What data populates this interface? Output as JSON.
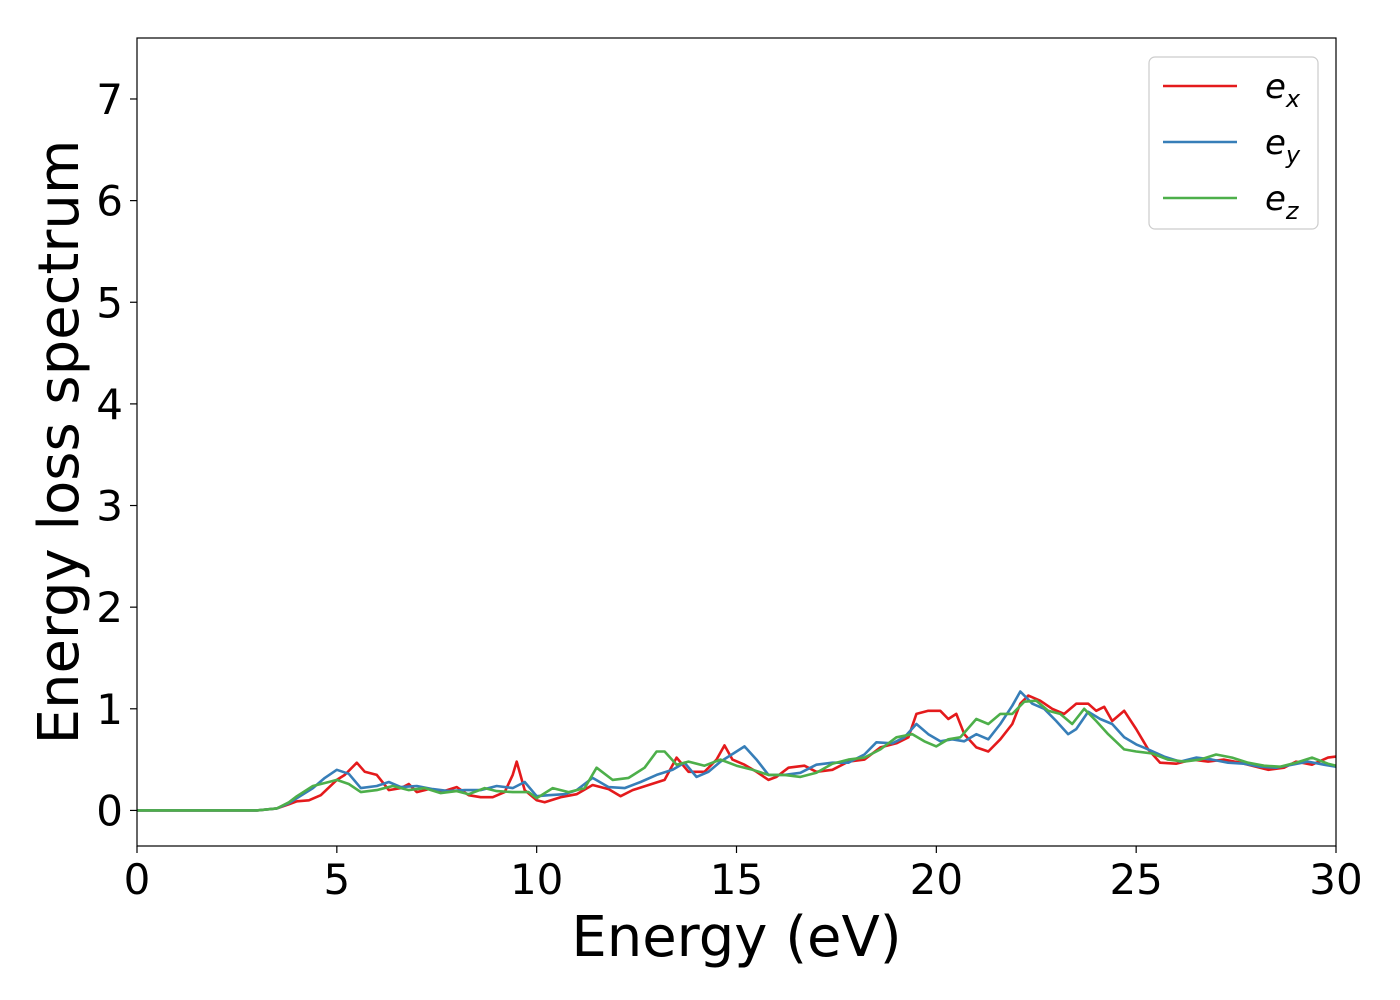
{
  "chart_data": {
    "type": "line",
    "title": "",
    "xlabel": "Energy (eV)",
    "ylabel": "Energy loss spectrum",
    "xlim": [
      0,
      30
    ],
    "ylim": [
      -0.35,
      7.6
    ],
    "xticks": [
      0,
      5,
      10,
      15,
      20,
      25,
      30
    ],
    "yticks": [
      0,
      1,
      2,
      3,
      4,
      5,
      6,
      7
    ],
    "grid": false,
    "legend_position": "top-right",
    "series": [
      {
        "name": "e_x",
        "label_base": "e",
        "label_sub": "x",
        "color": "#e41a1c",
        "points": [
          [
            0,
            0
          ],
          [
            1,
            0
          ],
          [
            2,
            0
          ],
          [
            3,
            0
          ],
          [
            3.5,
            0.02
          ],
          [
            3.8,
            0.06
          ],
          [
            4.0,
            0.09
          ],
          [
            4.3,
            0.1
          ],
          [
            4.6,
            0.15
          ],
          [
            5.0,
            0.3
          ],
          [
            5.2,
            0.35
          ],
          [
            5.5,
            0.47
          ],
          [
            5.7,
            0.38
          ],
          [
            6.0,
            0.35
          ],
          [
            6.3,
            0.2
          ],
          [
            6.6,
            0.22
          ],
          [
            6.8,
            0.26
          ],
          [
            7.0,
            0.18
          ],
          [
            7.3,
            0.21
          ],
          [
            7.6,
            0.18
          ],
          [
            8.0,
            0.23
          ],
          [
            8.3,
            0.15
          ],
          [
            8.6,
            0.13
          ],
          [
            8.9,
            0.13
          ],
          [
            9.2,
            0.18
          ],
          [
            9.4,
            0.35
          ],
          [
            9.5,
            0.48
          ],
          [
            9.7,
            0.2
          ],
          [
            10.0,
            0.1
          ],
          [
            10.2,
            0.08
          ],
          [
            10.6,
            0.13
          ],
          [
            11.0,
            0.16
          ],
          [
            11.4,
            0.25
          ],
          [
            11.8,
            0.21
          ],
          [
            12.1,
            0.14
          ],
          [
            12.4,
            0.2
          ],
          [
            12.8,
            0.25
          ],
          [
            13.2,
            0.3
          ],
          [
            13.5,
            0.52
          ],
          [
            13.8,
            0.38
          ],
          [
            14.2,
            0.38
          ],
          [
            14.5,
            0.5
          ],
          [
            14.7,
            0.64
          ],
          [
            14.9,
            0.5
          ],
          [
            15.2,
            0.45
          ],
          [
            15.5,
            0.38
          ],
          [
            15.8,
            0.3
          ],
          [
            16.0,
            0.33
          ],
          [
            16.3,
            0.42
          ],
          [
            16.7,
            0.44
          ],
          [
            17.0,
            0.38
          ],
          [
            17.4,
            0.4
          ],
          [
            17.8,
            0.48
          ],
          [
            18.2,
            0.5
          ],
          [
            18.6,
            0.62
          ],
          [
            19.0,
            0.66
          ],
          [
            19.3,
            0.72
          ],
          [
            19.5,
            0.95
          ],
          [
            19.8,
            0.98
          ],
          [
            20.1,
            0.98
          ],
          [
            20.3,
            0.9
          ],
          [
            20.5,
            0.95
          ],
          [
            20.7,
            0.75
          ],
          [
            21.0,
            0.62
          ],
          [
            21.3,
            0.58
          ],
          [
            21.6,
            0.7
          ],
          [
            21.9,
            0.85
          ],
          [
            22.1,
            1.05
          ],
          [
            22.3,
            1.13
          ],
          [
            22.6,
            1.08
          ],
          [
            22.9,
            1.0
          ],
          [
            23.2,
            0.95
          ],
          [
            23.5,
            1.05
          ],
          [
            23.8,
            1.05
          ],
          [
            24.0,
            0.98
          ],
          [
            24.2,
            1.02
          ],
          [
            24.4,
            0.88
          ],
          [
            24.7,
            0.98
          ],
          [
            25.0,
            0.8
          ],
          [
            25.3,
            0.6
          ],
          [
            25.6,
            0.47
          ],
          [
            26.0,
            0.46
          ],
          [
            26.4,
            0.5
          ],
          [
            26.8,
            0.48
          ],
          [
            27.2,
            0.5
          ],
          [
            27.6,
            0.47
          ],
          [
            28.0,
            0.43
          ],
          [
            28.3,
            0.4
          ],
          [
            28.7,
            0.42
          ],
          [
            29.0,
            0.48
          ],
          [
            29.4,
            0.45
          ],
          [
            29.8,
            0.52
          ],
          [
            30.0,
            0.53
          ]
        ]
      },
      {
        "name": "e_y",
        "label_base": "e",
        "label_sub": "y",
        "color": "#377eb8",
        "points": [
          [
            0,
            0
          ],
          [
            1,
            0
          ],
          [
            2,
            0
          ],
          [
            3,
            0
          ],
          [
            3.5,
            0.02
          ],
          [
            3.8,
            0.07
          ],
          [
            4.0,
            0.12
          ],
          [
            4.4,
            0.22
          ],
          [
            4.7,
            0.32
          ],
          [
            5.0,
            0.4
          ],
          [
            5.3,
            0.36
          ],
          [
            5.6,
            0.22
          ],
          [
            6.0,
            0.24
          ],
          [
            6.3,
            0.28
          ],
          [
            6.6,
            0.23
          ],
          [
            7.0,
            0.24
          ],
          [
            7.4,
            0.21
          ],
          [
            7.8,
            0.19
          ],
          [
            8.2,
            0.2
          ],
          [
            8.6,
            0.2
          ],
          [
            9.0,
            0.24
          ],
          [
            9.4,
            0.22
          ],
          [
            9.7,
            0.28
          ],
          [
            10.0,
            0.14
          ],
          [
            10.3,
            0.15
          ],
          [
            10.7,
            0.16
          ],
          [
            11.0,
            0.2
          ],
          [
            11.4,
            0.32
          ],
          [
            11.8,
            0.23
          ],
          [
            12.2,
            0.22
          ],
          [
            12.6,
            0.28
          ],
          [
            13.0,
            0.35
          ],
          [
            13.4,
            0.4
          ],
          [
            13.7,
            0.47
          ],
          [
            14.0,
            0.33
          ],
          [
            14.3,
            0.38
          ],
          [
            14.6,
            0.48
          ],
          [
            15.0,
            0.58
          ],
          [
            15.2,
            0.63
          ],
          [
            15.5,
            0.5
          ],
          [
            15.8,
            0.35
          ],
          [
            16.2,
            0.35
          ],
          [
            16.6,
            0.37
          ],
          [
            17.0,
            0.45
          ],
          [
            17.4,
            0.47
          ],
          [
            17.8,
            0.47
          ],
          [
            18.2,
            0.55
          ],
          [
            18.5,
            0.67
          ],
          [
            18.9,
            0.66
          ],
          [
            19.2,
            0.72
          ],
          [
            19.5,
            0.85
          ],
          [
            19.8,
            0.75
          ],
          [
            20.1,
            0.68
          ],
          [
            20.4,
            0.7
          ],
          [
            20.7,
            0.68
          ],
          [
            21.0,
            0.75
          ],
          [
            21.3,
            0.7
          ],
          [
            21.6,
            0.85
          ],
          [
            21.9,
            1.03
          ],
          [
            22.1,
            1.17
          ],
          [
            22.4,
            1.05
          ],
          [
            22.7,
            1.0
          ],
          [
            23.0,
            0.88
          ],
          [
            23.3,
            0.75
          ],
          [
            23.5,
            0.8
          ],
          [
            23.8,
            0.97
          ],
          [
            24.1,
            0.9
          ],
          [
            24.4,
            0.85
          ],
          [
            24.7,
            0.72
          ],
          [
            25.0,
            0.65
          ],
          [
            25.3,
            0.6
          ],
          [
            25.7,
            0.53
          ],
          [
            26.1,
            0.48
          ],
          [
            26.5,
            0.52
          ],
          [
            26.9,
            0.5
          ],
          [
            27.3,
            0.47
          ],
          [
            27.7,
            0.46
          ],
          [
            28.1,
            0.43
          ],
          [
            28.5,
            0.42
          ],
          [
            28.9,
            0.45
          ],
          [
            29.3,
            0.48
          ],
          [
            29.7,
            0.45
          ],
          [
            30.0,
            0.43
          ]
        ]
      },
      {
        "name": "e_z",
        "label_base": "e",
        "label_sub": "z",
        "color": "#4daf4a",
        "points": [
          [
            0,
            0
          ],
          [
            1,
            0
          ],
          [
            2,
            0
          ],
          [
            3,
            0
          ],
          [
            3.5,
            0.02
          ],
          [
            3.8,
            0.08
          ],
          [
            4.0,
            0.14
          ],
          [
            4.4,
            0.24
          ],
          [
            4.8,
            0.28
          ],
          [
            5.0,
            0.3
          ],
          [
            5.3,
            0.26
          ],
          [
            5.6,
            0.18
          ],
          [
            6.0,
            0.2
          ],
          [
            6.4,
            0.24
          ],
          [
            6.8,
            0.2
          ],
          [
            7.2,
            0.22
          ],
          [
            7.6,
            0.17
          ],
          [
            8.0,
            0.19
          ],
          [
            8.3,
            0.16
          ],
          [
            8.7,
            0.22
          ],
          [
            9.0,
            0.19
          ],
          [
            9.4,
            0.18
          ],
          [
            9.8,
            0.18
          ],
          [
            10.0,
            0.12
          ],
          [
            10.4,
            0.22
          ],
          [
            10.8,
            0.18
          ],
          [
            11.2,
            0.22
          ],
          [
            11.5,
            0.42
          ],
          [
            11.9,
            0.3
          ],
          [
            12.3,
            0.32
          ],
          [
            12.7,
            0.42
          ],
          [
            13.0,
            0.58
          ],
          [
            13.2,
            0.58
          ],
          [
            13.5,
            0.45
          ],
          [
            13.8,
            0.48
          ],
          [
            14.2,
            0.44
          ],
          [
            14.6,
            0.5
          ],
          [
            15.0,
            0.44
          ],
          [
            15.4,
            0.4
          ],
          [
            15.8,
            0.35
          ],
          [
            16.2,
            0.35
          ],
          [
            16.6,
            0.33
          ],
          [
            17.0,
            0.37
          ],
          [
            17.4,
            0.46
          ],
          [
            17.8,
            0.5
          ],
          [
            18.2,
            0.52
          ],
          [
            18.6,
            0.6
          ],
          [
            19.0,
            0.72
          ],
          [
            19.4,
            0.75
          ],
          [
            19.7,
            0.68
          ],
          [
            20.0,
            0.63
          ],
          [
            20.3,
            0.7
          ],
          [
            20.6,
            0.72
          ],
          [
            21.0,
            0.9
          ],
          [
            21.3,
            0.85
          ],
          [
            21.6,
            0.95
          ],
          [
            21.9,
            0.95
          ],
          [
            22.2,
            1.07
          ],
          [
            22.5,
            1.08
          ],
          [
            22.8,
            0.98
          ],
          [
            23.1,
            0.95
          ],
          [
            23.4,
            0.85
          ],
          [
            23.7,
            1.0
          ],
          [
            24.0,
            0.88
          ],
          [
            24.3,
            0.75
          ],
          [
            24.7,
            0.6
          ],
          [
            25.0,
            0.58
          ],
          [
            25.4,
            0.56
          ],
          [
            25.8,
            0.5
          ],
          [
            26.2,
            0.48
          ],
          [
            26.6,
            0.5
          ],
          [
            27.0,
            0.55
          ],
          [
            27.4,
            0.52
          ],
          [
            27.8,
            0.47
          ],
          [
            28.2,
            0.44
          ],
          [
            28.6,
            0.43
          ],
          [
            29.0,
            0.47
          ],
          [
            29.4,
            0.52
          ],
          [
            29.8,
            0.46
          ],
          [
            30.0,
            0.44
          ]
        ]
      }
    ]
  }
}
